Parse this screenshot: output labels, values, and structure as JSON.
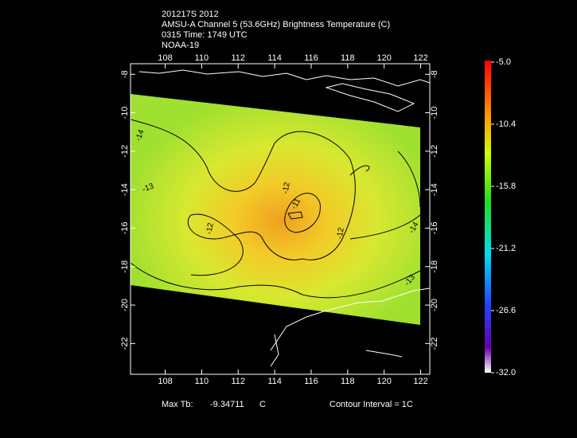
{
  "header": {
    "lines": [
      "201217S 2012",
      "AMSU-A Channel 5 (53.6GHz) Brightness Temperature (C)",
      "0315 Time: 1749 UTC",
      "NOAA-19"
    ]
  },
  "map": {
    "xlim": [
      106.1,
      122.5
    ],
    "ylim": [
      -7.45,
      -23.6
    ],
    "xticks": [
      108,
      110,
      112,
      114,
      116,
      118,
      120,
      122
    ],
    "yticks": [
      -8,
      -10,
      -12,
      -14,
      -16,
      -18,
      -20,
      -22
    ],
    "contour_labels": [
      "-14",
      "-13",
      "-12",
      "-12",
      "-12",
      "-11",
      "-14",
      "-13"
    ]
  },
  "colorbar": {
    "lim": [
      -32,
      -5
    ],
    "ticks": [
      {
        "value": -5,
        "label": "-5.0"
      },
      {
        "value": -10.4,
        "label": "-10.4"
      },
      {
        "value": -15.8,
        "label": "-15.8"
      },
      {
        "value": -21.2,
        "label": "-21.2"
      },
      {
        "value": -26.6,
        "label": "-26.6"
      },
      {
        "value": -32,
        "label": "-32.0"
      }
    ]
  },
  "footer": {
    "max_label": "Max Tb:",
    "max_value": -9.34711,
    "max_unit": "C",
    "contour_interval": "Contour Interval = 1C"
  }
}
